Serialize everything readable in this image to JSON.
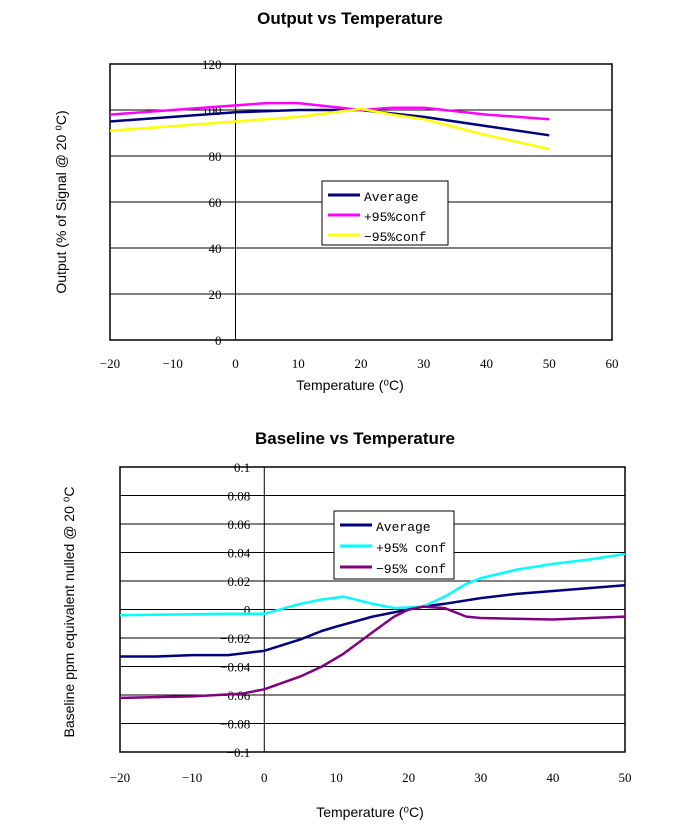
{
  "chart_data": [
    {
      "type": "line",
      "title": "Output vs Temperature",
      "xlabel": "Temperature (⁰C)",
      "ylabel": "Output (% of Signal @ 20 ⁰C)",
      "xlim": [
        -20,
        60
      ],
      "ylim": [
        0,
        120
      ],
      "xticks": [
        -20,
        -10,
        0,
        10,
        20,
        30,
        40,
        50,
        60
      ],
      "yticks": [
        0,
        20,
        40,
        60,
        80,
        100,
        120
      ],
      "xtick_labels": [
        "−20",
        "−10",
        "0",
        "10",
        "20",
        "30",
        "40",
        "50",
        "60"
      ],
      "ytick_labels": [
        "0",
        "20",
        "40",
        "60",
        "80",
        "100",
        "120"
      ],
      "grid": "horizontal",
      "legend": "center",
      "series": [
        {
          "name": "Average",
          "color": "#000080",
          "x": [
            -20,
            -10,
            0,
            10,
            20,
            30,
            40,
            50
          ],
          "y": [
            95,
            97,
            99,
            100,
            100,
            97,
            93,
            89
          ]
        },
        {
          "name": "+95%conf",
          "color": "#ff00ff",
          "x": [
            -20,
            -10,
            0,
            5,
            10,
            20,
            25,
            30,
            40,
            50
          ],
          "y": [
            98,
            100,
            102,
            103,
            103,
            100,
            101,
            101,
            98,
            96
          ]
        },
        {
          "name": "−95%conf",
          "color": "#ffff00",
          "x": [
            -20,
            -10,
            0,
            10,
            20,
            25,
            30,
            40,
            50
          ],
          "y": [
            91,
            93,
            95,
            97,
            100.5,
            98,
            96,
            89,
            83
          ]
        }
      ]
    },
    {
      "type": "line",
      "title": "Baseline vs Temperature",
      "xlabel": "Temperature (⁰C)",
      "ylabel": "Baseline ppm equivalent nulled @ 20 ⁰C",
      "xlim": [
        -20,
        50
      ],
      "ylim": [
        -0.1,
        0.1
      ],
      "xticks": [
        -20,
        -10,
        0,
        10,
        20,
        30,
        40,
        50
      ],
      "yticks": [
        -0.1,
        -0.08,
        -0.06,
        -0.04,
        -0.02,
        0,
        0.02,
        0.04,
        0.06,
        0.08,
        0.1
      ],
      "xtick_labels": [
        "−20",
        "−10",
        "0",
        "10",
        "20",
        "30",
        "40",
        "50"
      ],
      "ytick_labels": [
        "−0.1",
        "−0.08",
        "−0.06",
        "−0.04",
        "−0.02",
        "0",
        "0.02",
        "0.04",
        "0.06",
        "0.08",
        "0.1"
      ],
      "grid": "horizontal",
      "legend": "top-center",
      "series": [
        {
          "name": "Average",
          "color": "#000080",
          "x": [
            -20,
            -15,
            -10,
            -5,
            0,
            5,
            8,
            10,
            15,
            20,
            22,
            25,
            30,
            35,
            40,
            45,
            50
          ],
          "y": [
            -0.033,
            -0.033,
            -0.032,
            -0.032,
            -0.029,
            -0.021,
            -0.015,
            -0.012,
            -0.005,
            0,
            0.002,
            0.004,
            0.008,
            0.011,
            0.013,
            0.015,
            0.017
          ]
        },
        {
          "name": "+95% conf",
          "color": "#00ffff",
          "x": [
            -20,
            -5,
            0,
            5,
            8,
            11,
            15,
            18,
            22,
            25,
            28,
            30,
            35,
            40,
            45,
            50
          ],
          "y": [
            -0.004,
            -0.003,
            -0.003,
            0.004,
            0.007,
            0.009,
            0.004,
            0.001,
            0.002,
            0.009,
            0.018,
            0.022,
            0.028,
            0.032,
            0.035,
            0.039
          ]
        },
        {
          "name": "−95% conf",
          "color": "#800080",
          "x": [
            -20,
            -10,
            -3,
            0,
            5,
            8,
            11,
            15,
            18,
            20,
            22,
            25,
            28,
            30,
            40,
            50
          ],
          "y": [
            -0.062,
            -0.061,
            -0.059,
            -0.056,
            -0.047,
            -0.04,
            -0.031,
            -0.016,
            -0.005,
            0,
            0.002,
            0.001,
            -0.005,
            -0.006,
            -0.007,
            -0.005
          ]
        }
      ]
    }
  ]
}
